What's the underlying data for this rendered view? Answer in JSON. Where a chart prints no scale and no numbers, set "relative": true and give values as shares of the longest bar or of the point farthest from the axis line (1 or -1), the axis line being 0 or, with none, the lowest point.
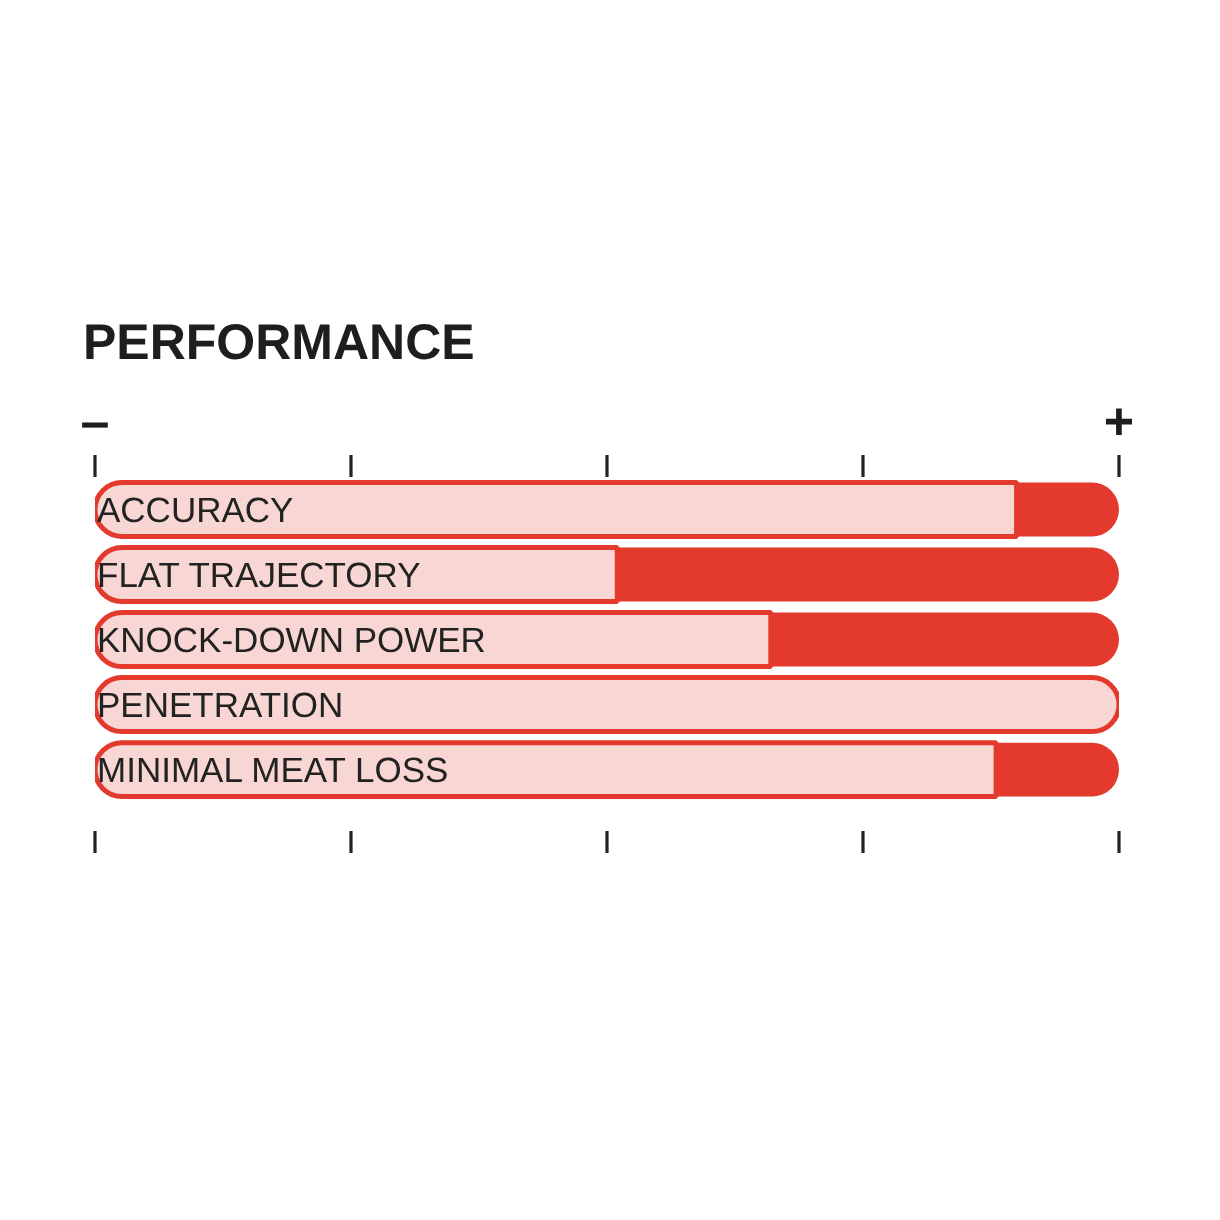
{
  "chart_data": {
    "type": "bar",
    "orientation": "horizontal",
    "stacked": true,
    "relative": true,
    "title": "PERFORMANCE",
    "categories": [
      "ACCURACY",
      "FLAT TRAJECTORY",
      "KNOCK-DOWN POWER",
      "PENETRATION",
      "MINIMAL MEAT LOSS"
    ],
    "series": [
      {
        "color": "#f8d6d3",
        "values": [
          0.9,
          0.51,
          0.66,
          1.0,
          0.88
        ]
      },
      {
        "color": "#e4392d",
        "values": [
          0.1,
          0.49,
          0.34,
          0.0,
          0.12
        ]
      }
    ],
    "annotations": [
      "–",
      "+"
    ],
    "legend": false,
    "grid": false
  }
}
